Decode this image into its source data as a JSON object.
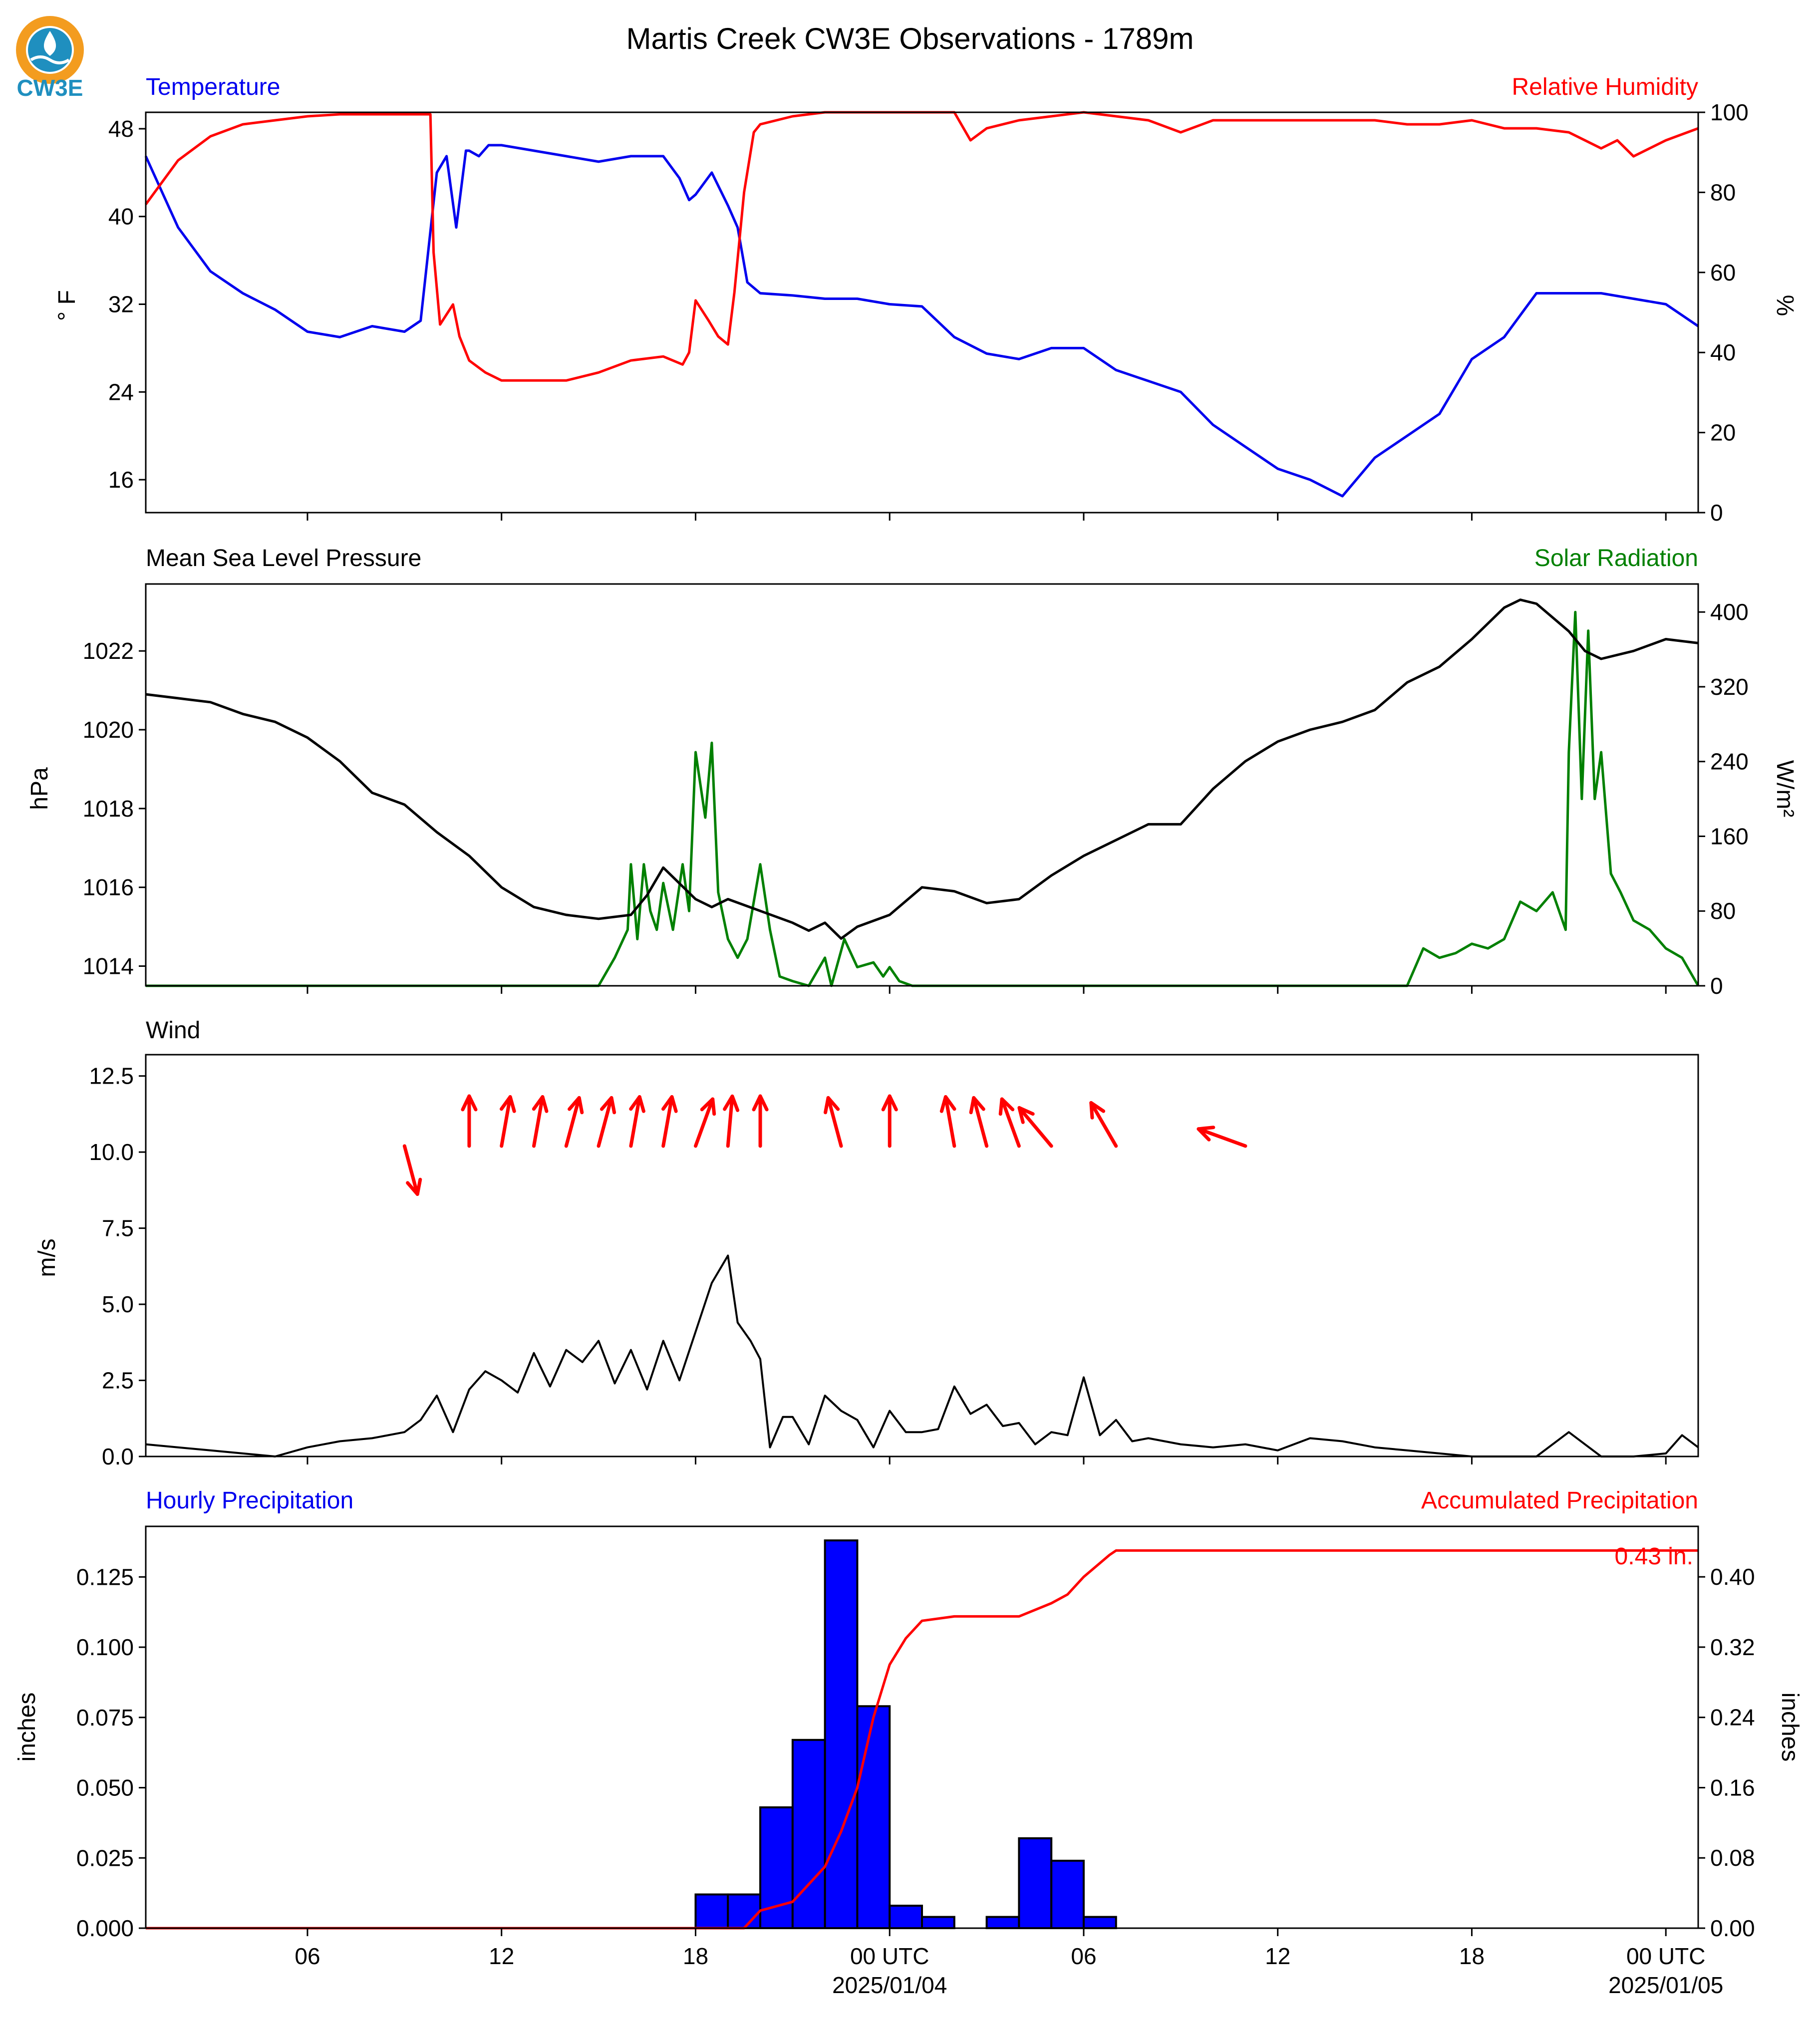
{
  "title": "Martis Creek CW3E Observations - 1789m",
  "logo": {
    "text": "CW3E",
    "colors": {
      "ring": "#f39c1f",
      "drop": "#1f8fbf",
      "text": "#1f8fbf"
    }
  },
  "colors": {
    "blue": "#0000ee",
    "red": "#ff0000",
    "green": "#008000",
    "black": "#000000",
    "bar_fill": "#0000ff"
  },
  "x_axis": {
    "tick_labels": [
      "06",
      "12",
      "18",
      "00 UTC",
      "06",
      "12",
      "18",
      "00 UTC"
    ],
    "tick_hours": [
      6,
      12,
      18,
      24,
      30,
      36,
      42,
      48
    ],
    "date_labels": [
      "2025/01/04",
      "2025/01/05"
    ],
    "range_hours": [
      1,
      49
    ]
  },
  "panels": {
    "temp": {
      "left_label": "Temperature",
      "right_label": "Relative Humidity",
      "left_unit": "° F",
      "right_unit": "%",
      "left_ticks": [
        48,
        40,
        32,
        24,
        16
      ],
      "right_ticks": [
        100,
        80,
        60,
        40,
        20,
        0
      ]
    },
    "pressure": {
      "left_label": "Mean Sea Level Pressure",
      "right_label": "Solar Radiation",
      "left_unit": "hPa",
      "right_unit": "W/m²",
      "left_ticks": [
        1022,
        1020,
        1018,
        1016,
        1014
      ],
      "right_ticks": [
        400,
        320,
        240,
        160,
        80,
        0
      ]
    },
    "wind": {
      "left_label": "Wind",
      "left_unit": "m/s",
      "left_ticks": [
        "12.5",
        "10.0",
        "7.5",
        "5.0",
        "2.5",
        "0.0"
      ]
    },
    "precip": {
      "left_label": "Hourly Precipitation",
      "right_label": "Accumulated Precipitation",
      "left_unit": "inches",
      "right_unit": "inches",
      "left_ticks": [
        "0.125",
        "0.100",
        "0.075",
        "0.050",
        "0.025",
        "0.000"
      ],
      "right_ticks": [
        "0.40",
        "0.32",
        "0.24",
        "0.16",
        "0.08",
        "0.00"
      ],
      "total_label": "0.43 in."
    }
  },
  "chart_data": [
    {
      "type": "line",
      "title": "Temperature / Relative Humidity",
      "ylim": [
        13,
        49.5
      ],
      "y2lim": [
        0,
        100
      ],
      "series": [
        {
          "name": "Temperature",
          "axis": "left",
          "unit": "° F",
          "x": [
            1,
            2,
            3,
            4,
            5,
            6,
            7,
            8,
            9,
            9.5,
            10,
            10.3,
            10.6,
            10.9,
            11,
            11.3,
            11.6,
            12,
            13,
            14,
            15,
            16,
            17,
            17.5,
            17.8,
            18,
            18.5,
            19,
            19.3,
            19.6,
            20,
            21,
            22,
            23,
            24,
            25,
            26,
            27,
            28,
            29,
            30,
            31,
            32,
            33,
            34,
            35,
            36,
            37,
            38,
            39,
            40,
            40.5,
            41,
            42,
            43,
            44,
            45,
            46,
            47,
            48,
            49
          ],
          "y": [
            45.5,
            39,
            35,
            33,
            31.5,
            29.5,
            29,
            30,
            29.5,
            30.5,
            44,
            45.5,
            39,
            46,
            46,
            45.5,
            46.5,
            46.5,
            46,
            45.5,
            45,
            45.5,
            45.5,
            43.5,
            41.5,
            42,
            44,
            41,
            39,
            34,
            33,
            32.8,
            32.5,
            32.5,
            32,
            31.8,
            29,
            27.5,
            27,
            28,
            28,
            26,
            25,
            24,
            21,
            19,
            17,
            16,
            14.5,
            18,
            20,
            21,
            22,
            27,
            29,
            33,
            33,
            33,
            32.5,
            32,
            30
          ]
        },
        {
          "name": "Relative Humidity",
          "axis": "right",
          "unit": "%",
          "x": [
            1,
            2,
            3,
            4,
            5,
            6,
            7,
            8,
            9,
            9.8,
            9.9,
            10.1,
            10.5,
            10.7,
            11,
            11.5,
            12,
            13,
            14,
            15,
            16,
            17,
            17.6,
            17.8,
            18,
            18.4,
            18.7,
            19,
            19.2,
            19.5,
            19.8,
            20,
            21,
            22,
            23,
            24,
            25,
            26,
            26.5,
            27,
            28,
            29,
            30,
            31,
            32,
            33,
            34,
            35,
            36,
            37,
            38,
            39,
            40,
            41,
            42,
            43,
            44,
            45,
            46,
            46.5,
            47,
            48,
            49
          ],
          "y": [
            77,
            88,
            94,
            97,
            98,
            99,
            99.5,
            99.5,
            99.5,
            99.5,
            65,
            47,
            52,
            44,
            38,
            35,
            33,
            33,
            33,
            35,
            38,
            39,
            37,
            40,
            53,
            48,
            44,
            42,
            55,
            80,
            95,
            97,
            99,
            100,
            100,
            100,
            100,
            100,
            93,
            96,
            98,
            99,
            100,
            99,
            98,
            95,
            98,
            98,
            98,
            98,
            98,
            98,
            97,
            97,
            98,
            96,
            96,
            95,
            91,
            93,
            89,
            93,
            96
          ]
        }
      ]
    },
    {
      "type": "line",
      "title": "Mean Sea Level Pressure / Solar Radiation",
      "ylim": [
        1013.5,
        1023.7
      ],
      "y2lim": [
        0,
        430
      ],
      "series": [
        {
          "name": "Mean Sea Level Pressure",
          "axis": "left",
          "unit": "hPa",
          "x": [
            1,
            2,
            3,
            4,
            5,
            6,
            7,
            8,
            9,
            10,
            11,
            12,
            13,
            14,
            15,
            16,
            16.5,
            17,
            18,
            18.5,
            19,
            20,
            21,
            21.5,
            22,
            22.5,
            23,
            24,
            25,
            26,
            27,
            28,
            29,
            30,
            31,
            32,
            33,
            34,
            35,
            36,
            37,
            38,
            39,
            40,
            41,
            42,
            43,
            43.5,
            44,
            45,
            45.5,
            46,
            47,
            48,
            49
          ],
          "y": [
            1020.9,
            1020.8,
            1020.7,
            1020.4,
            1020.2,
            1019.8,
            1019.2,
            1018.4,
            1018.1,
            1017.4,
            1016.8,
            1016,
            1015.5,
            1015.3,
            1015.2,
            1015.3,
            1015.8,
            1016.5,
            1015.7,
            1015.5,
            1015.7,
            1015.4,
            1015.1,
            1014.9,
            1015.1,
            1014.7,
            1015,
            1015.3,
            1016,
            1015.9,
            1015.6,
            1015.7,
            1016.3,
            1016.8,
            1017.2,
            1017.6,
            1017.6,
            1018.5,
            1019.2,
            1019.7,
            1020,
            1020.2,
            1020.5,
            1021.2,
            1021.6,
            1022.3,
            1023.1,
            1023.3,
            1023.2,
            1022.5,
            1022,
            1021.8,
            1022,
            1022.3,
            1022.2
          ]
        },
        {
          "name": "Solar Radiation",
          "axis": "right",
          "unit": "W/m²",
          "x": [
            1,
            15,
            15.5,
            15.9,
            16,
            16.2,
            16.4,
            16.6,
            16.8,
            17,
            17.3,
            17.6,
            17.8,
            18,
            18.3,
            18.5,
            18.7,
            19,
            19.3,
            19.6,
            20,
            20.3,
            20.6,
            21,
            21.5,
            22,
            22.2,
            22.6,
            23,
            23.5,
            23.8,
            24,
            24.3,
            24.7,
            40,
            40.5,
            41,
            41.5,
            42,
            42.5,
            43,
            43.5,
            44,
            44.5,
            44.9,
            45,
            45.2,
            45.4,
            45.6,
            45.8,
            46,
            46.3,
            46.6,
            47,
            47.5,
            48,
            48.5,
            49
          ],
          "y": [
            0,
            0,
            30,
            60,
            130,
            50,
            130,
            80,
            60,
            110,
            60,
            130,
            80,
            250,
            180,
            260,
            100,
            50,
            30,
            50,
            130,
            60,
            10,
            5,
            0,
            30,
            0,
            50,
            20,
            25,
            10,
            20,
            5,
            0,
            0,
            40,
            30,
            35,
            45,
            40,
            50,
            90,
            80,
            100,
            60,
            250,
            400,
            200,
            380,
            200,
            250,
            120,
            100,
            70,
            60,
            40,
            30,
            0
          ]
        }
      ]
    },
    {
      "type": "line",
      "title": "Wind",
      "ylim": [
        0,
        13.2
      ],
      "series": [
        {
          "name": "Wind",
          "unit": "m/s",
          "x": [
            1,
            2,
            3,
            4,
            5,
            6,
            7,
            8,
            9,
            9.5,
            10,
            10.5,
            11,
            11.5,
            12,
            12.5,
            13,
            13.5,
            14,
            14.5,
            15,
            15.5,
            16,
            16.5,
            17,
            17.5,
            18,
            18.5,
            19,
            19.3,
            19.7,
            20,
            20.3,
            20.7,
            21,
            21.5,
            22,
            22.5,
            23,
            23.5,
            24,
            24.5,
            25,
            25.5,
            26,
            26.5,
            27,
            27.5,
            28,
            28.5,
            29,
            29.5,
            30,
            30.5,
            31,
            31.5,
            32,
            33,
            34,
            35,
            36,
            37,
            38,
            39,
            40,
            41,
            42,
            43,
            44,
            45,
            46,
            47,
            48,
            48.5,
            49
          ],
          "y": [
            0.4,
            0.3,
            0.2,
            0.1,
            0,
            0.3,
            0.5,
            0.6,
            0.8,
            1.2,
            2,
            0.8,
            2.2,
            2.8,
            2.5,
            2.1,
            3.4,
            2.3,
            3.5,
            3.1,
            3.8,
            2.4,
            3.5,
            2.2,
            3.8,
            2.5,
            4.1,
            5.7,
            6.6,
            4.4,
            3.8,
            3.2,
            0.3,
            1.3,
            1.3,
            0.4,
            2,
            1.5,
            1.2,
            0.3,
            1.5,
            0.8,
            0.8,
            0.9,
            2.3,
            1.4,
            1.7,
            1,
            1.1,
            0.4,
            0.8,
            0.7,
            2.6,
            0.7,
            1.2,
            0.5,
            0.6,
            0.4,
            0.3,
            0.4,
            0.2,
            0.6,
            0.5,
            0.3,
            0.2,
            0.1,
            0,
            0,
            0,
            0.8,
            0,
            0,
            0.1,
            0.7,
            0.3
          ]
        }
      ],
      "wind_vectors": {
        "x": [
          9,
          11,
          12,
          13,
          14,
          15,
          16,
          17,
          18,
          19,
          20,
          22.5,
          24,
          26,
          27,
          28,
          29,
          31,
          35
        ],
        "from_dir_deg": [
          345,
          180,
          190,
          190,
          195,
          195,
          190,
          190,
          200,
          185,
          180,
          165,
          180,
          170,
          165,
          160,
          140,
          150,
          110
        ]
      }
    },
    {
      "type": "bar",
      "title": "Hourly Precipitation / Accumulated Precipitation",
      "ylim": [
        0,
        0.143
      ],
      "y2lim": [
        0,
        0.4575
      ],
      "series": [
        {
          "name": "Hourly Precipitation",
          "axis": "left",
          "unit": "inches",
          "x": [
            19,
            20,
            21,
            22,
            23,
            24,
            25,
            26,
            28,
            29,
            30,
            31
          ],
          "y": [
            0.012,
            0.012,
            0.043,
            0.067,
            0.138,
            0.079,
            0.008,
            0.004,
            0.004,
            0.032,
            0.024,
            0.004
          ]
        },
        {
          "name": "Accumulated Precipitation",
          "axis": "right",
          "unit": "inches",
          "type": "line",
          "x": [
            1,
            19.5,
            20,
            21,
            21.5,
            22,
            22.5,
            23,
            23.5,
            24,
            24.5,
            25,
            26,
            27,
            28,
            29,
            29.5,
            30,
            30.8,
            31,
            49
          ],
          "y": [
            0,
            0,
            0.02,
            0.03,
            0.05,
            0.07,
            0.11,
            0.16,
            0.24,
            0.3,
            0.33,
            0.35,
            0.355,
            0.355,
            0.355,
            0.37,
            0.38,
            0.4,
            0.425,
            0.43,
            0.43
          ]
        }
      ]
    }
  ]
}
